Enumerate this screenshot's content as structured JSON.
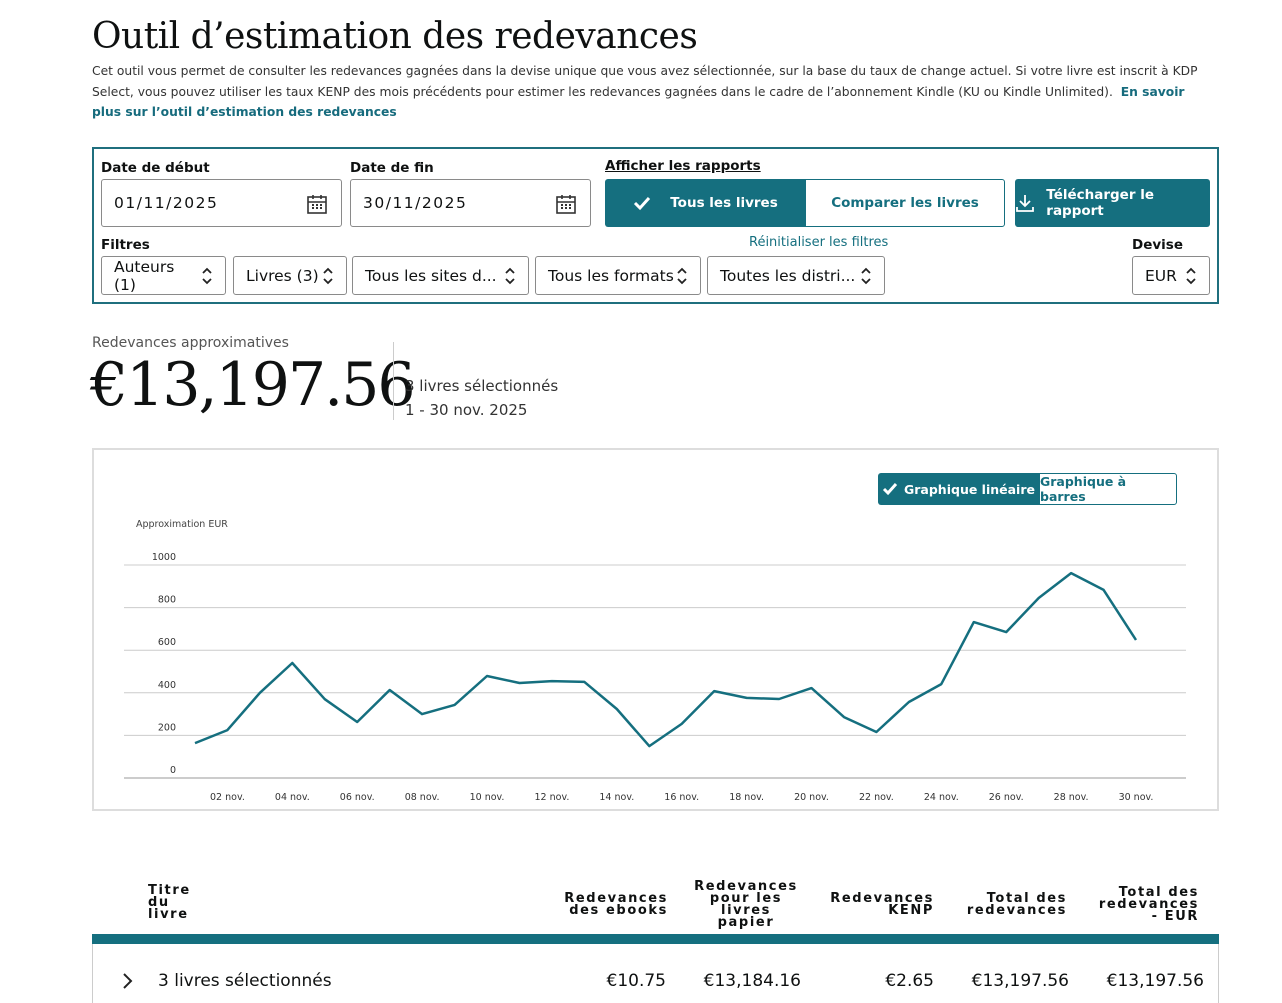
{
  "header": {
    "title": "Outil d’estimation des redevances",
    "description": "Cet outil vous permet de consulter les redevances gagnées dans la devise unique que vous avez sélectionnée, sur la base du taux de change actuel. Si votre livre est inscrit à KDP Select, vous pouvez utiliser les taux KENP des mois précédents pour estimer les redevances gagnées dans le cadre de l’abonnement Kindle (KU ou Kindle Unlimited).",
    "link": "En savoir plus sur l’outil d’estimation des redevances"
  },
  "filters": {
    "start_label": "Date de début",
    "start_value": "01/11/2025",
    "end_label": "Date de fin",
    "end_value": "30/11/2025",
    "reports_label": "Afficher les rapports",
    "all_books": "Tous les livres",
    "compare_books": "Comparer les livres",
    "download": "Télécharger le rapport",
    "filters_label": "Filtres",
    "reset": "Réinitialiser les filtres",
    "currency_label": "Devise",
    "selects": [
      "Auteurs (1)",
      "Livres (3)",
      "Tous les sites d...",
      "Tous les formats",
      "Toutes les distri..."
    ],
    "currency": "EUR"
  },
  "summary": {
    "label": "Redevances approximatives",
    "amount": "€13,197.56",
    "books": "3 livres sélectionnés",
    "period": "1 - 30 nov. 2025"
  },
  "chart_controls": {
    "line": "Graphique linéaire",
    "bar": "Graphique à barres"
  },
  "chart_data": {
    "type": "line",
    "y_label": "Approximation EUR",
    "categories": [
      null,
      "02 nov.",
      null,
      "04 nov.",
      null,
      "06 nov.",
      null,
      "08 nov.",
      null,
      "10 nov.",
      null,
      "12 nov.",
      null,
      "14 nov.",
      null,
      "16 nov.",
      null,
      "18 nov.",
      null,
      "20 nov.",
      null,
      "22 nov.",
      null,
      "24 nov.",
      null,
      "26 nov.",
      null,
      "28 nov.",
      null,
      "30 nov."
    ],
    "values": [
      164,
      225,
      400,
      540,
      370,
      263,
      413,
      300,
      343,
      479,
      446,
      455,
      451,
      324,
      150,
      254,
      408,
      376,
      371,
      422,
      286,
      216,
      357,
      441,
      732,
      685,
      845,
      962,
      883,
      648
    ],
    "color": "#156f7f",
    "ylim": [
      0,
      1000
    ],
    "yticks": [
      0,
      200,
      400,
      600,
      800,
      1000
    ],
    "grid": true
  },
  "table": {
    "headers": [
      "Titre du livre",
      "Redevances des ebooks",
      "Redevances pour les livres papier",
      "Redevances KENP",
      "Total des redevances",
      "Total des redevances - EUR"
    ],
    "rows": [
      [
        "3 livres sélectionnés",
        "€10.75",
        "€13,184.16",
        "€2.65",
        "€13,197.56",
        "€13,197.56"
      ]
    ]
  }
}
